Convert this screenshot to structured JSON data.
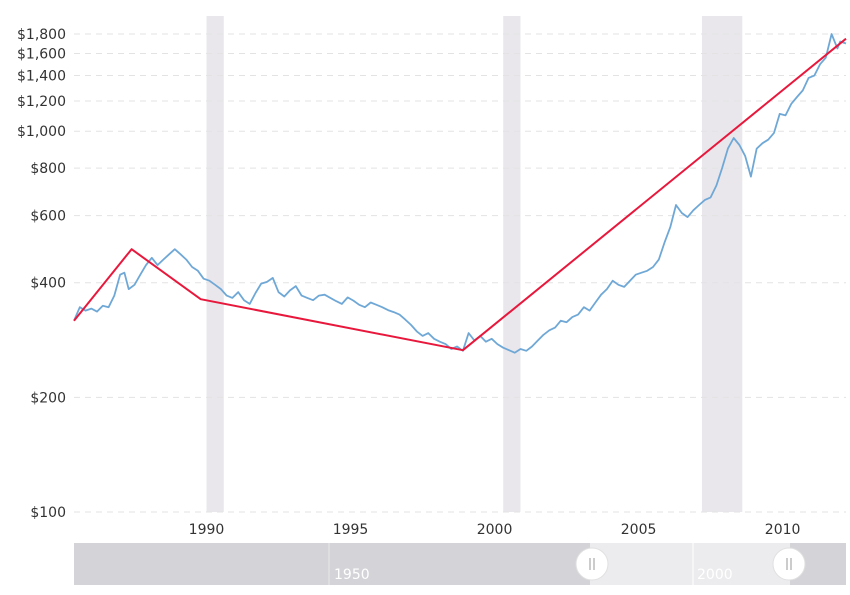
{
  "chart_data": {
    "type": "line",
    "title": "",
    "xlabel": "",
    "ylabel": "",
    "y_scale": "log",
    "ylim": [
      100,
      1900
    ],
    "xlim": [
      1985.4,
      2012.2
    ],
    "y_ticks": [
      {
        "value": 100,
        "label": "$100"
      },
      {
        "value": 200,
        "label": "$200"
      },
      {
        "value": 400,
        "label": "$400"
      },
      {
        "value": 600,
        "label": "$600"
      },
      {
        "value": 800,
        "label": "$800"
      },
      {
        "value": 1000,
        "label": "$1,000"
      },
      {
        "value": 1200,
        "label": "$1,200"
      },
      {
        "value": 1400,
        "label": "$1,400"
      },
      {
        "value": 1600,
        "label": "$1,600"
      },
      {
        "value": 1800,
        "label": "$1,800"
      }
    ],
    "x_ticks": [
      {
        "value": 1990,
        "label": "1990"
      },
      {
        "value": 1995,
        "label": "1995"
      },
      {
        "value": 2000,
        "label": "2000"
      },
      {
        "value": 2005,
        "label": "2005"
      },
      {
        "value": 2010,
        "label": "2010"
      }
    ],
    "grid": true,
    "recession_bands": [
      [
        1990.0,
        1990.6
      ],
      [
        2000.3,
        2000.9
      ],
      [
        2007.2,
        2008.6
      ]
    ],
    "series": [
      {
        "color": "#6fa8d6",
        "points": [
          [
            1985.4,
            318
          ],
          [
            1985.6,
            345
          ],
          [
            1985.8,
            338
          ],
          [
            1986.0,
            342
          ],
          [
            1986.2,
            336
          ],
          [
            1986.4,
            348
          ],
          [
            1986.6,
            345
          ],
          [
            1986.8,
            370
          ],
          [
            1987.0,
            420
          ],
          [
            1987.15,
            425
          ],
          [
            1987.3,
            385
          ],
          [
            1987.5,
            395
          ],
          [
            1987.7,
            420
          ],
          [
            1987.9,
            445
          ],
          [
            1988.1,
            465
          ],
          [
            1988.3,
            445
          ],
          [
            1988.5,
            460
          ],
          [
            1988.7,
            475
          ],
          [
            1988.9,
            490
          ],
          [
            1989.1,
            475
          ],
          [
            1989.3,
            460
          ],
          [
            1989.5,
            440
          ],
          [
            1989.7,
            430
          ],
          [
            1989.9,
            410
          ],
          [
            1990.1,
            405
          ],
          [
            1990.3,
            395
          ],
          [
            1990.5,
            385
          ],
          [
            1990.7,
            370
          ],
          [
            1990.9,
            365
          ],
          [
            1991.1,
            378
          ],
          [
            1991.3,
            360
          ],
          [
            1991.5,
            352
          ],
          [
            1991.7,
            376
          ],
          [
            1991.9,
            398
          ],
          [
            1992.1,
            402
          ],
          [
            1992.3,
            412
          ],
          [
            1992.5,
            378
          ],
          [
            1992.7,
            368
          ],
          [
            1992.9,
            382
          ],
          [
            1993.1,
            392
          ],
          [
            1993.3,
            370
          ],
          [
            1993.5,
            365
          ],
          [
            1993.7,
            360
          ],
          [
            1993.9,
            370
          ],
          [
            1994.1,
            372
          ],
          [
            1994.3,
            365
          ],
          [
            1994.5,
            358
          ],
          [
            1994.7,
            352
          ],
          [
            1994.9,
            366
          ],
          [
            1995.1,
            359
          ],
          [
            1995.3,
            350
          ],
          [
            1995.5,
            345
          ],
          [
            1995.7,
            355
          ],
          [
            1995.9,
            350
          ],
          [
            1996.1,
            345
          ],
          [
            1996.3,
            339
          ],
          [
            1996.5,
            335
          ],
          [
            1996.7,
            330
          ],
          [
            1996.9,
            320
          ],
          [
            1997.1,
            310
          ],
          [
            1997.3,
            298
          ],
          [
            1997.5,
            290
          ],
          [
            1997.7,
            295
          ],
          [
            1997.9,
            285
          ],
          [
            1998.1,
            280
          ],
          [
            1998.3,
            276
          ],
          [
            1998.5,
            268
          ],
          [
            1998.7,
            272
          ],
          [
            1998.9,
            265
          ],
          [
            1999.1,
            295
          ],
          [
            1999.3,
            282
          ],
          [
            1999.5,
            290
          ],
          [
            1999.7,
            280
          ],
          [
            1999.9,
            285
          ],
          [
            2000.1,
            276
          ],
          [
            2000.3,
            270
          ],
          [
            2000.5,
            266
          ],
          [
            2000.7,
            262
          ],
          [
            2000.9,
            268
          ],
          [
            2001.1,
            265
          ],
          [
            2001.3,
            272
          ],
          [
            2001.5,
            282
          ],
          [
            2001.7,
            292
          ],
          [
            2001.9,
            300
          ],
          [
            2002.1,
            305
          ],
          [
            2002.3,
            318
          ],
          [
            2002.5,
            315
          ],
          [
            2002.7,
            325
          ],
          [
            2002.9,
            330
          ],
          [
            2003.1,
            345
          ],
          [
            2003.3,
            338
          ],
          [
            2003.5,
            355
          ],
          [
            2003.7,
            372
          ],
          [
            2003.9,
            385
          ],
          [
            2004.1,
            405
          ],
          [
            2004.3,
            395
          ],
          [
            2004.5,
            390
          ],
          [
            2004.7,
            405
          ],
          [
            2004.9,
            420
          ],
          [
            2005.1,
            425
          ],
          [
            2005.3,
            430
          ],
          [
            2005.5,
            440
          ],
          [
            2005.7,
            460
          ],
          [
            2005.9,
            510
          ],
          [
            2006.1,
            560
          ],
          [
            2006.3,
            640
          ],
          [
            2006.5,
            610
          ],
          [
            2006.7,
            595
          ],
          [
            2006.9,
            620
          ],
          [
            2007.1,
            640
          ],
          [
            2007.3,
            660
          ],
          [
            2007.5,
            670
          ],
          [
            2007.7,
            720
          ],
          [
            2007.9,
            800
          ],
          [
            2008.1,
            900
          ],
          [
            2008.3,
            960
          ],
          [
            2008.5,
            920
          ],
          [
            2008.7,
            860
          ],
          [
            2008.9,
            760
          ],
          [
            2009.1,
            900
          ],
          [
            2009.3,
            930
          ],
          [
            2009.5,
            950
          ],
          [
            2009.7,
            990
          ],
          [
            2009.9,
            1110
          ],
          [
            2010.1,
            1100
          ],
          [
            2010.3,
            1180
          ],
          [
            2010.5,
            1230
          ],
          [
            2010.7,
            1280
          ],
          [
            2010.9,
            1380
          ],
          [
            2011.1,
            1400
          ],
          [
            2011.3,
            1500
          ],
          [
            2011.5,
            1560
          ],
          [
            2011.7,
            1800
          ],
          [
            2011.9,
            1650
          ],
          [
            2012.0,
            1720
          ],
          [
            2012.2,
            1700
          ]
        ]
      },
      {
        "color": "#e8183c",
        "points": [
          [
            1985.4,
            318
          ],
          [
            1987.4,
            490
          ],
          [
            1989.8,
            362
          ],
          [
            1998.9,
            266
          ],
          [
            2012.2,
            1750
          ]
        ]
      }
    ],
    "navigator": {
      "labels": [
        "1950",
        "2000"
      ]
    }
  }
}
